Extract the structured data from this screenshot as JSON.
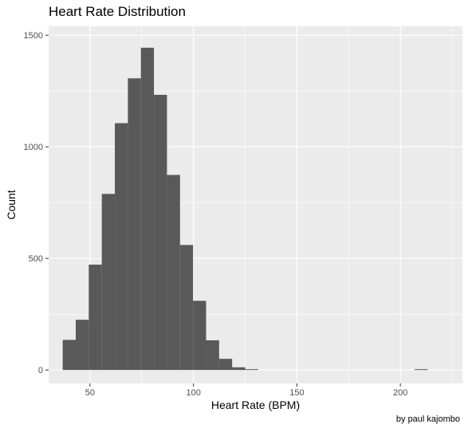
{
  "chart_data": {
    "type": "bar",
    "title": "Heart Rate Distribution",
    "caption": "by paul kajombo",
    "xlabel": "Heart Rate (BPM)",
    "ylabel": "Count",
    "xlim": [
      30,
      230
    ],
    "ylim": [
      -60,
      1540
    ],
    "x_ticks": [
      50,
      100,
      150,
      200
    ],
    "x_tick_labels": [
      "50",
      "100",
      "150",
      "200"
    ],
    "y_ticks": [
      0,
      500,
      1000,
      1500
    ],
    "y_tick_labels": [
      "0",
      "500",
      "1000",
      "1500"
    ],
    "bin_width": 6.3,
    "bins": [
      {
        "x0": 36.8,
        "x1": 43.1,
        "count": 135
      },
      {
        "x0": 43.1,
        "x1": 49.4,
        "count": 225
      },
      {
        "x0": 49.4,
        "x1": 55.7,
        "count": 472
      },
      {
        "x0": 55.7,
        "x1": 62.0,
        "count": 789
      },
      {
        "x0": 62.0,
        "x1": 68.3,
        "count": 1106
      },
      {
        "x0": 68.3,
        "x1": 74.6,
        "count": 1307
      },
      {
        "x0": 74.6,
        "x1": 80.9,
        "count": 1444
      },
      {
        "x0": 80.9,
        "x1": 87.2,
        "count": 1233
      },
      {
        "x0": 87.2,
        "x1": 93.5,
        "count": 874
      },
      {
        "x0": 93.5,
        "x1": 99.8,
        "count": 560
      },
      {
        "x0": 99.8,
        "x1": 106.1,
        "count": 310
      },
      {
        "x0": 106.1,
        "x1": 112.4,
        "count": 133
      },
      {
        "x0": 112.4,
        "x1": 118.7,
        "count": 50
      },
      {
        "x0": 118.7,
        "x1": 125.0,
        "count": 12
      },
      {
        "x0": 125.0,
        "x1": 131.3,
        "count": 1
      },
      {
        "x0": 131.3,
        "x1": 137.6,
        "count": 0
      },
      {
        "x0": 137.6,
        "x1": 143.9,
        "count": 0
      },
      {
        "x0": 143.9,
        "x1": 150.2,
        "count": 0
      },
      {
        "x0": 150.2,
        "x1": 156.5,
        "count": 0
      },
      {
        "x0": 156.5,
        "x1": 162.8,
        "count": 0
      },
      {
        "x0": 162.8,
        "x1": 169.1,
        "count": 0
      },
      {
        "x0": 169.1,
        "x1": 175.4,
        "count": 0
      },
      {
        "x0": 175.4,
        "x1": 181.7,
        "count": 0
      },
      {
        "x0": 181.7,
        "x1": 188.0,
        "count": 0
      },
      {
        "x0": 188.0,
        "x1": 194.3,
        "count": 0
      },
      {
        "x0": 194.3,
        "x1": 200.6,
        "count": 0
      },
      {
        "x0": 200.6,
        "x1": 206.9,
        "count": 0
      },
      {
        "x0": 206.9,
        "x1": 213.2,
        "count": 3
      }
    ],
    "grid": true,
    "legend": "none",
    "colors": {
      "panel": "#ebebeb",
      "grid_major": "#ffffff",
      "bar_fill": "#595959",
      "tick_text": "#4d4d4d",
      "tick_mark": "#333333"
    }
  }
}
